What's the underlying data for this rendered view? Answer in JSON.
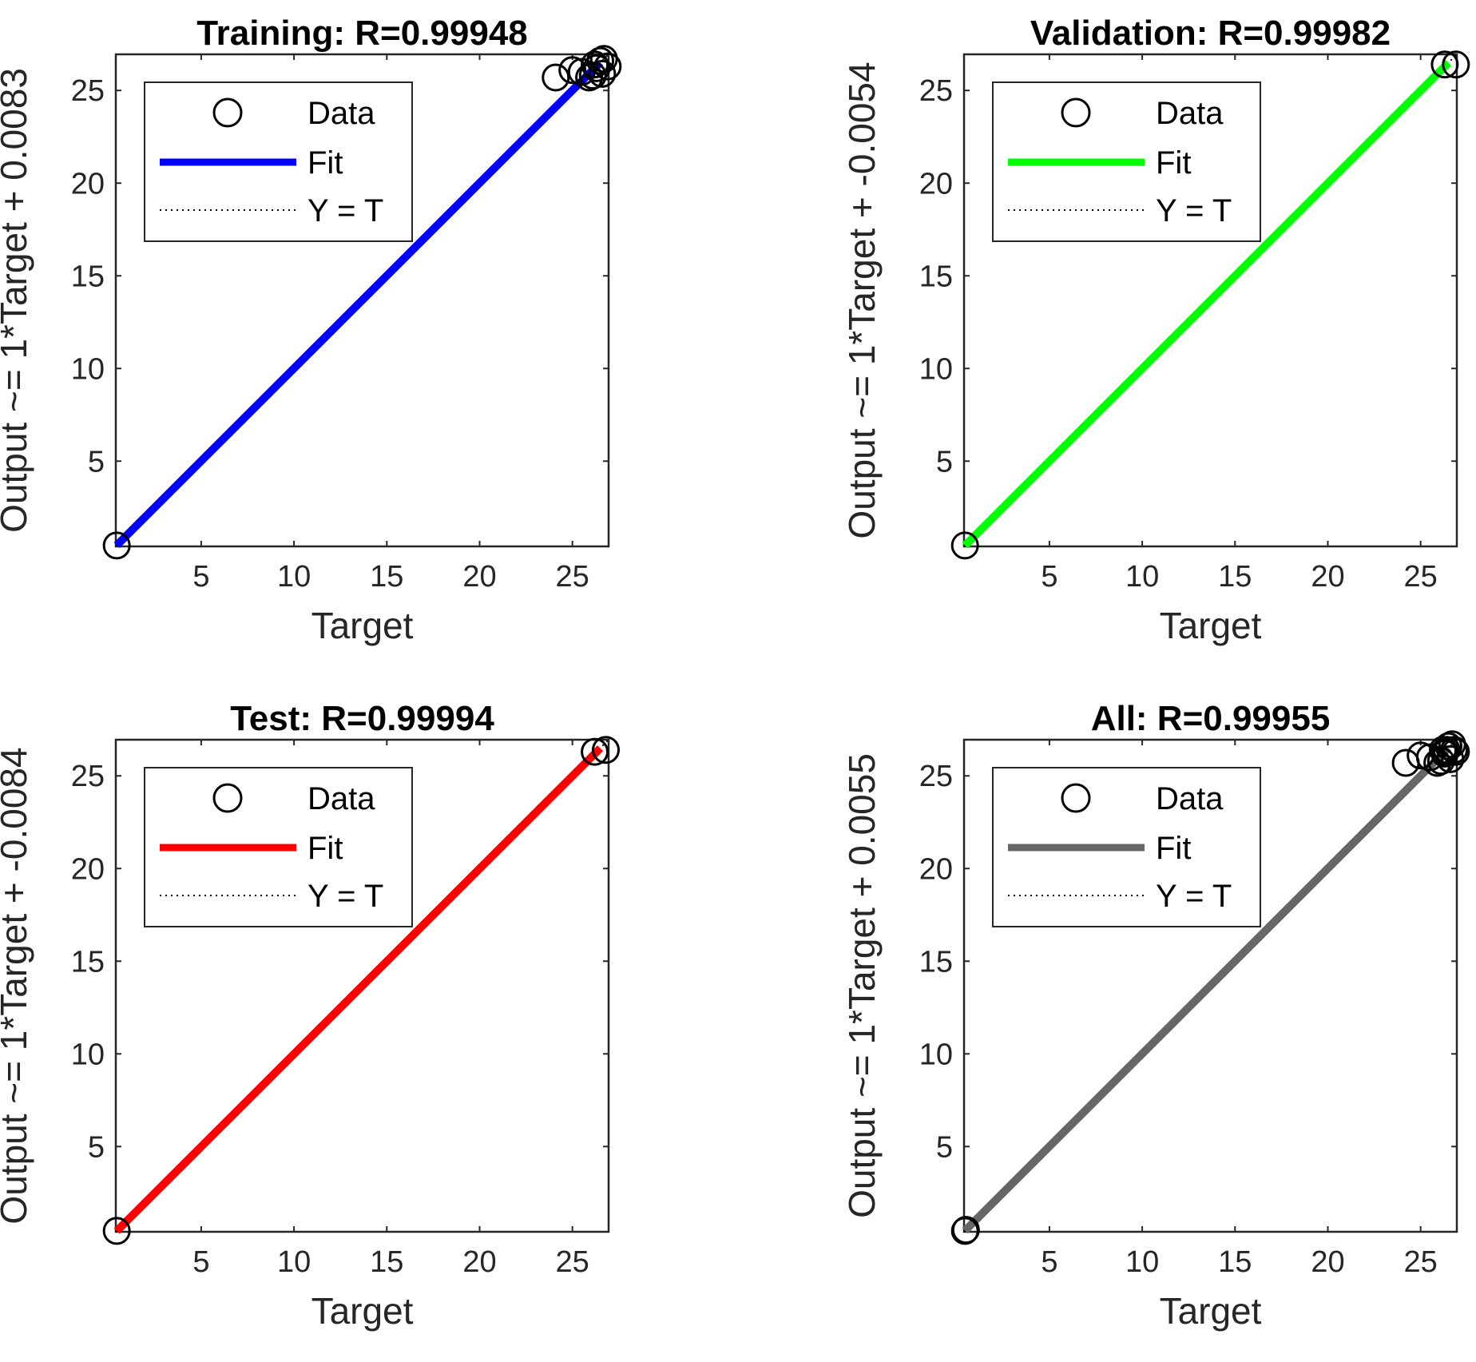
{
  "chart_data": [
    {
      "type": "scatter",
      "title": "Training: R=0.99948",
      "xlabel": "Target",
      "ylabel": "Output ~= 1*Target + 0.0083",
      "xlim": [
        0.4,
        26.95
      ],
      "ylim": [
        0.4,
        26.95
      ],
      "xticks": [
        5,
        10,
        15,
        20,
        25
      ],
      "yticks": [
        5,
        10,
        15,
        20,
        25
      ],
      "legend": {
        "position": "top-left",
        "entries": [
          "Data",
          "Fit",
          "Y = T"
        ]
      },
      "fit": {
        "slope": 1,
        "intercept": 0.0083,
        "color": "#0000ff"
      },
      "points": [
        [
          0.45,
          0.45
        ],
        [
          24.1,
          25.7
        ],
        [
          25.0,
          26.1
        ],
        [
          25.5,
          26.0
        ],
        [
          25.9,
          25.7
        ],
        [
          26.1,
          25.8
        ],
        [
          26.3,
          26.2
        ],
        [
          26.5,
          26.6
        ],
        [
          26.7,
          26.7
        ],
        [
          26.9,
          26.3
        ],
        [
          26.6,
          25.9
        ],
        [
          26.2,
          26.4
        ]
      ]
    },
    {
      "type": "scatter",
      "title": "Validation: R=0.99982",
      "xlabel": "Target",
      "ylabel": "Output ~= 1*Target + -0.0054",
      "xlim": [
        0.4,
        26.95
      ],
      "ylim": [
        0.4,
        26.95
      ],
      "xticks": [
        5,
        10,
        15,
        20,
        25
      ],
      "yticks": [
        5,
        10,
        15,
        20,
        25
      ],
      "legend": {
        "position": "top-left",
        "entries": [
          "Data",
          "Fit",
          "Y = T"
        ]
      },
      "fit": {
        "slope": 1,
        "intercept": -0.0054,
        "color": "#00ff00"
      },
      "points": [
        [
          0.45,
          0.45
        ],
        [
          26.3,
          26.4
        ],
        [
          26.9,
          26.4
        ]
      ]
    },
    {
      "type": "scatter",
      "title": "Test: R=0.99994",
      "xlabel": "Target",
      "ylabel": "Output ~= 1*Target + -0.0084",
      "xlim": [
        0.4,
        26.95
      ],
      "ylim": [
        0.4,
        26.95
      ],
      "xticks": [
        5,
        10,
        15,
        20,
        25
      ],
      "yticks": [
        5,
        10,
        15,
        20,
        25
      ],
      "legend": {
        "position": "top-left",
        "entries": [
          "Data",
          "Fit",
          "Y = T"
        ]
      },
      "fit": {
        "slope": 1,
        "intercept": -0.0084,
        "color": "#ff0000"
      },
      "points": [
        [
          0.45,
          0.45
        ],
        [
          26.2,
          26.3
        ],
        [
          26.8,
          26.4
        ]
      ]
    },
    {
      "type": "scatter",
      "title": "All: R=0.99955",
      "xlabel": "Target",
      "ylabel": "Output ~= 1*Target + 0.0055",
      "xlim": [
        0.4,
        26.95
      ],
      "ylim": [
        0.4,
        26.95
      ],
      "xticks": [
        5,
        10,
        15,
        20,
        25
      ],
      "yticks": [
        5,
        10,
        15,
        20,
        25
      ],
      "legend": {
        "position": "top-left",
        "entries": [
          "Data",
          "Fit",
          "Y = T"
        ]
      },
      "fit": {
        "slope": 1,
        "intercept": 0.0055,
        "color": "#666666"
      },
      "points": [
        [
          0.45,
          0.45
        ],
        [
          0.5,
          0.5
        ],
        [
          24.2,
          25.7
        ],
        [
          25.0,
          26.1
        ],
        [
          25.5,
          26.0
        ],
        [
          25.9,
          25.7
        ],
        [
          26.1,
          25.8
        ],
        [
          26.3,
          26.2
        ],
        [
          26.5,
          26.6
        ],
        [
          26.7,
          26.7
        ],
        [
          26.9,
          26.3
        ],
        [
          26.6,
          25.9
        ],
        [
          26.2,
          26.4
        ],
        [
          26.4,
          26.4
        ],
        [
          26.8,
          26.4
        ],
        [
          26.3,
          26.3
        ]
      ]
    }
  ]
}
